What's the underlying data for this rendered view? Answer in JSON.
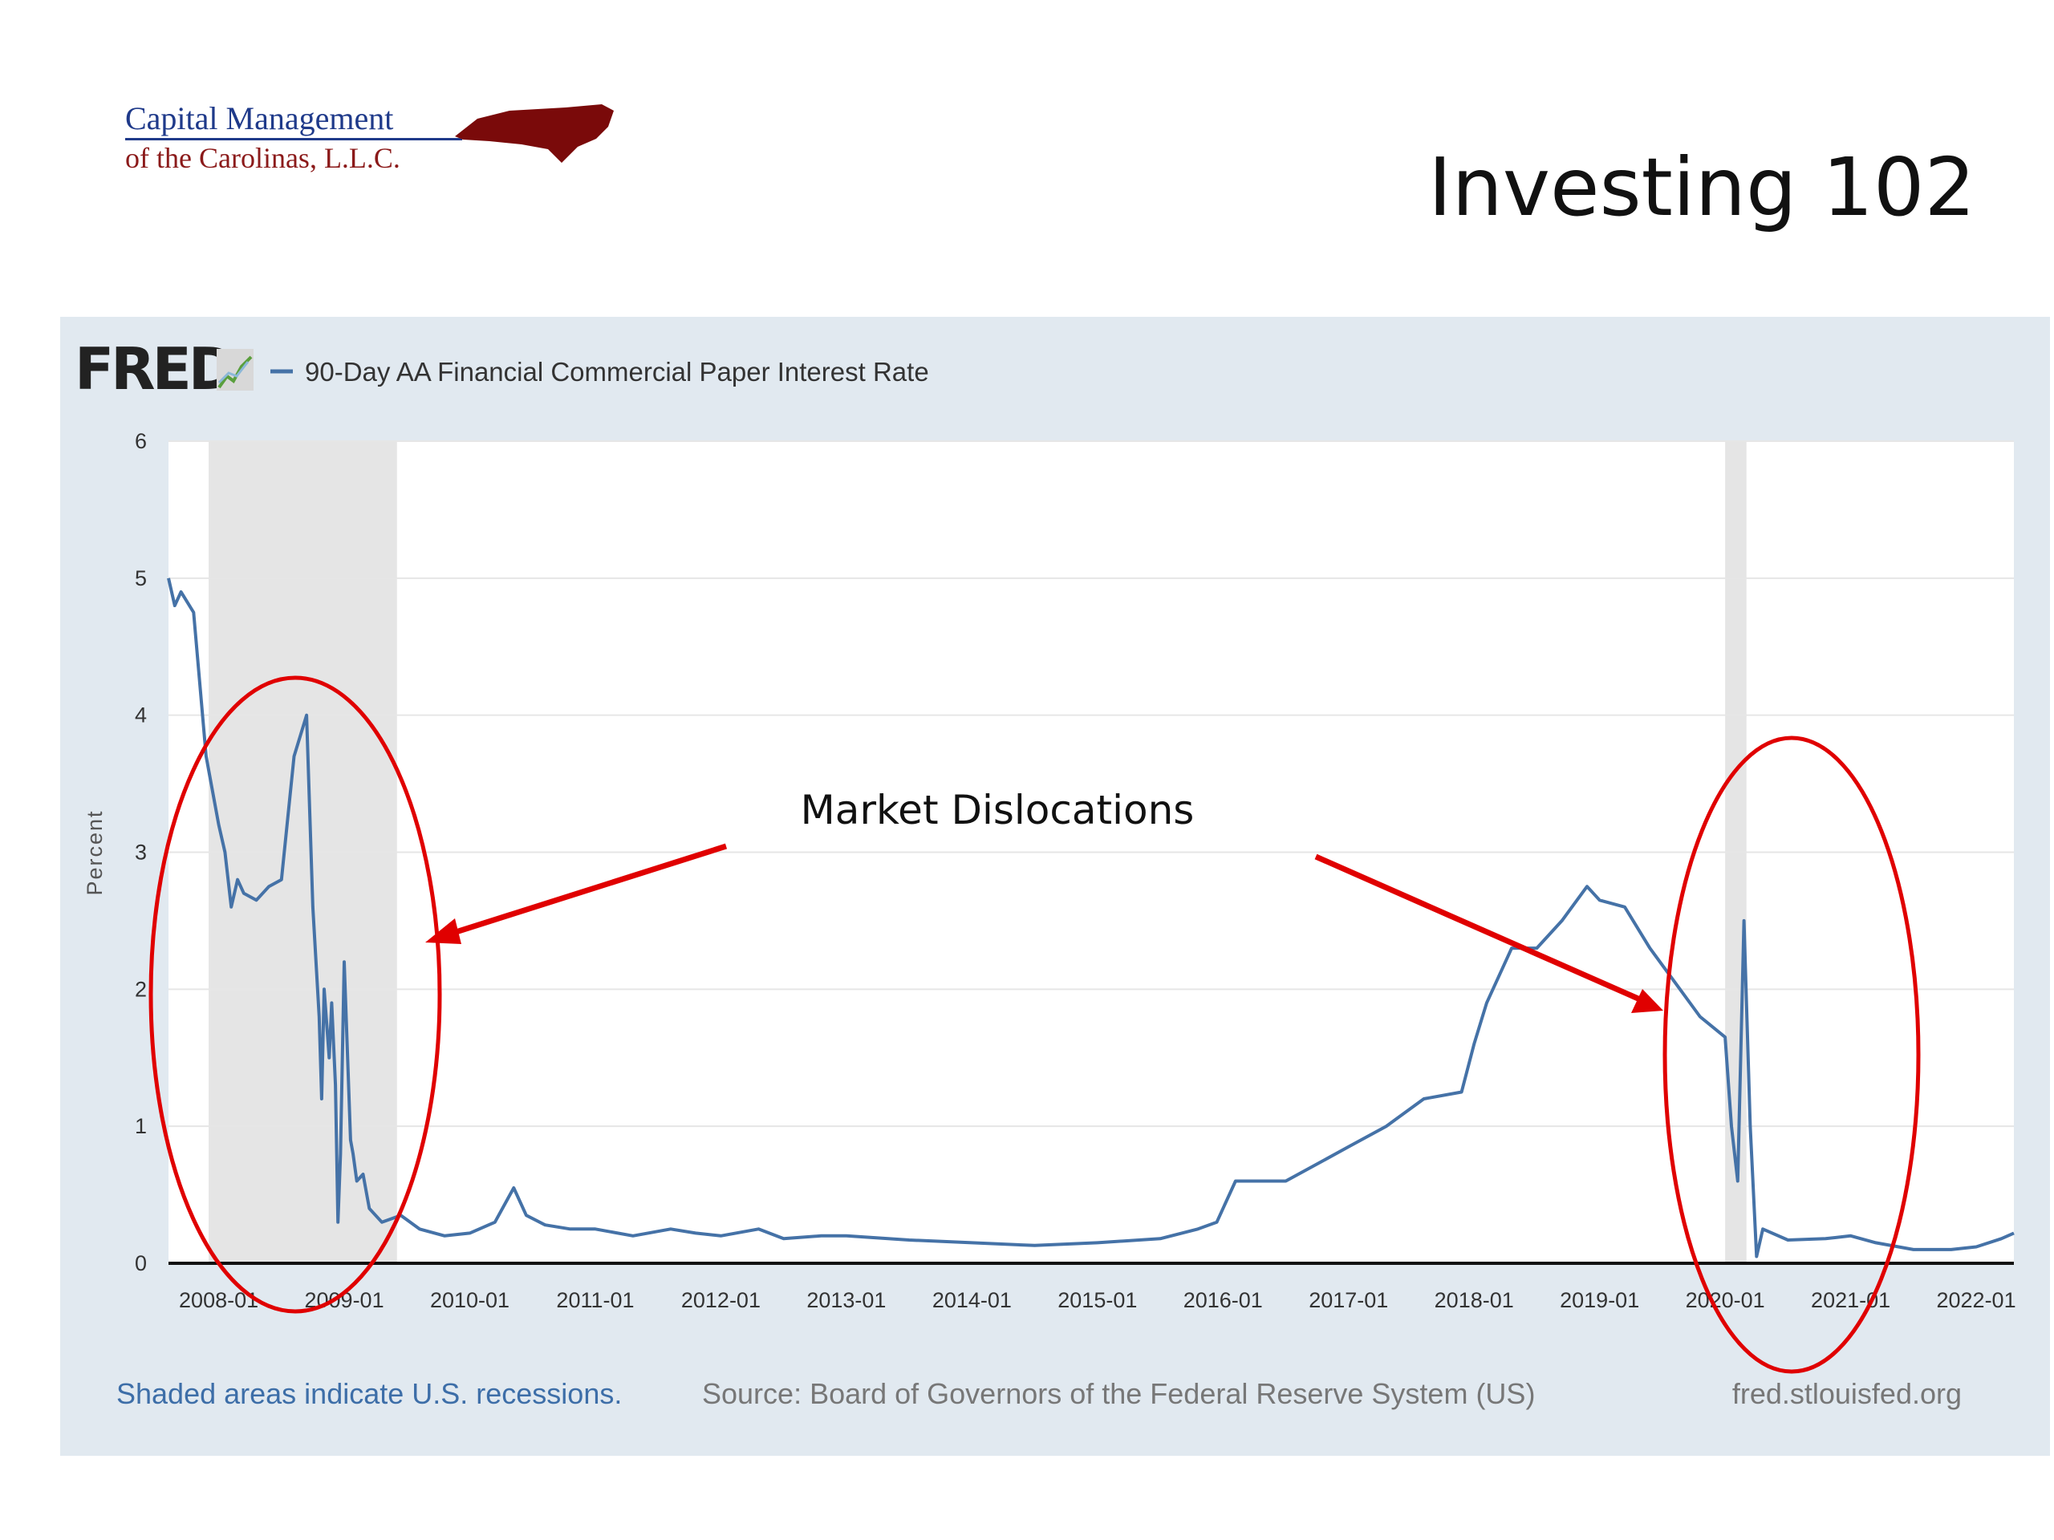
{
  "slide": {
    "title": "Investing 102",
    "logo": {
      "line1": "Capital Management",
      "line2": "of the Carolinas, L.L.C.",
      "state_color": "#7a0a0a"
    }
  },
  "fred": {
    "brand": "FRED",
    "series_label": "90-Day AA Financial Commercial Paper Interest Rate",
    "footer_left": "Shaded areas indicate U.S. recessions.",
    "footer_center": "Source: Board of Governors of the Federal Reserve System (US)",
    "footer_right": "fred.stlouisfed.org",
    "colors": {
      "panel": "#e1e9f0",
      "line": "#4572a7",
      "recession": "#e5e5e5",
      "annotation": "#e00000"
    }
  },
  "annotation": {
    "text": "Market Dislocations"
  },
  "chart_data": {
    "type": "line",
    "title": "",
    "xlabel": "",
    "ylabel": "Percent",
    "xlim": [
      2007.6,
      2022.3
    ],
    "ylim": [
      0,
      6
    ],
    "x_ticks": [
      "2008-01",
      "2009-01",
      "2010-01",
      "2011-01",
      "2012-01",
      "2013-01",
      "2014-01",
      "2015-01",
      "2016-01",
      "2017-01",
      "2018-01",
      "2019-01",
      "2020-01",
      "2021-01",
      "2022-01"
    ],
    "y_ticks": [
      0,
      1,
      2,
      3,
      4,
      5,
      6
    ],
    "recessions": [
      [
        2007.92,
        2009.42
      ],
      [
        2020.0,
        2020.17
      ]
    ],
    "series": [
      {
        "name": "90-Day AA Financial Commercial Paper Interest Rate",
        "x": [
          2007.6,
          2007.65,
          2007.7,
          2007.8,
          2007.9,
          2008.0,
          2008.05,
          2008.1,
          2008.15,
          2008.2,
          2008.3,
          2008.4,
          2008.5,
          2008.6,
          2008.7,
          2008.75,
          2008.8,
          2008.82,
          2008.84,
          2008.88,
          2008.9,
          2008.93,
          2008.95,
          2008.97,
          2009.0,
          2009.05,
          2009.07,
          2009.1,
          2009.15,
          2009.2,
          2009.3,
          2009.45,
          2009.6,
          2009.8,
          2010.0,
          2010.2,
          2010.35,
          2010.45,
          2010.6,
          2010.8,
          2011.0,
          2011.3,
          2011.6,
          2011.8,
          2012.0,
          2012.3,
          2012.5,
          2012.8,
          2013.0,
          2013.5,
          2014.0,
          2014.5,
          2015.0,
          2015.5,
          2015.8,
          2015.95,
          2016.1,
          2016.5,
          2016.8,
          2017.0,
          2017.3,
          2017.6,
          2017.9,
          2018.0,
          2018.1,
          2018.3,
          2018.5,
          2018.7,
          2018.9,
          2019.0,
          2019.2,
          2019.4,
          2019.6,
          2019.8,
          2020.0,
          2020.05,
          2020.1,
          2020.15,
          2020.2,
          2020.25,
          2020.3,
          2020.5,
          2020.8,
          2021.0,
          2021.2,
          2021.5,
          2021.8,
          2022.0,
          2022.2,
          2022.3
        ],
        "y": [
          5.0,
          4.8,
          4.9,
          4.75,
          3.7,
          3.2,
          3.0,
          2.6,
          2.8,
          2.7,
          2.65,
          2.75,
          2.8,
          3.7,
          4.0,
          2.6,
          1.8,
          1.2,
          2.0,
          1.5,
          1.9,
          1.3,
          0.3,
          0.8,
          2.2,
          0.9,
          0.8,
          0.6,
          0.65,
          0.4,
          0.3,
          0.35,
          0.25,
          0.2,
          0.22,
          0.3,
          0.55,
          0.35,
          0.28,
          0.25,
          0.25,
          0.2,
          0.25,
          0.22,
          0.2,
          0.25,
          0.18,
          0.2,
          0.2,
          0.17,
          0.15,
          0.13,
          0.15,
          0.18,
          0.25,
          0.3,
          0.6,
          0.6,
          0.75,
          0.85,
          1.0,
          1.2,
          1.25,
          1.6,
          1.9,
          2.3,
          2.3,
          2.5,
          2.75,
          2.65,
          2.6,
          2.3,
          2.05,
          1.8,
          1.65,
          1.0,
          0.6,
          2.5,
          1.0,
          0.05,
          0.25,
          0.17,
          0.18,
          0.2,
          0.15,
          0.1,
          0.1,
          0.12,
          0.18,
          0.22
        ]
      }
    ]
  }
}
